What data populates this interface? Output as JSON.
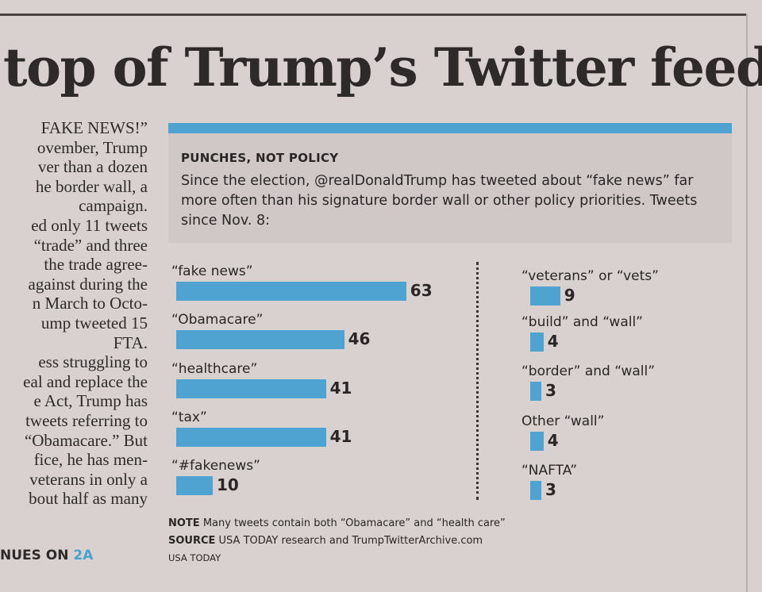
{
  "headline": "top of Trump’s Twitter feed",
  "article_lines": [
    "FAKE NEWS!”",
    "ovember, Trump",
    "ver than a dozen",
    "he border wall, a",
    "campaign.",
    "ed only 11 tweets",
    "“trade” and three",
    " the trade agree-",
    "against during the",
    "n March to Octo-",
    "ump tweeted 15",
    "FTA.",
    "ess struggling to",
    "eal and replace the",
    "e Act, Trump has",
    " tweets referring to",
    " “Obamacare.” But",
    "fice, he has men-",
    "veterans in only a",
    "bout half as many"
  ],
  "jump": {
    "text": "NUES ON ",
    "page": "2A"
  },
  "chart_data": {
    "type": "bar",
    "orientation": "horizontal",
    "title": "PUNCHES, NOT POLICY",
    "subtitle": "Since the election, @realDonaldTrump has tweeted about “fake news” far more often than his signature border wall or other policy priorities. Tweets since Nov. 8:",
    "categories": [
      "“fake news”",
      "“Obamacare”",
      "“healthcare”",
      "“tax”",
      "“#fakenews”",
      "“veterans” or “vets”",
      "“build” and “wall”",
      "“border” and “wall”",
      "Other “wall”",
      "“NAFTA”"
    ],
    "values": [
      63,
      46,
      41,
      41,
      10,
      9,
      4,
      3,
      4,
      3
    ],
    "color": "#4ea3d0",
    "note_label": "NOTE",
    "note": "Many tweets contain both “Obamacare” and “health care”",
    "source_label": "SOURCE",
    "source": "USA TODAY research and TrumpTwitterArchive.com",
    "credit": "USA TODAY"
  }
}
